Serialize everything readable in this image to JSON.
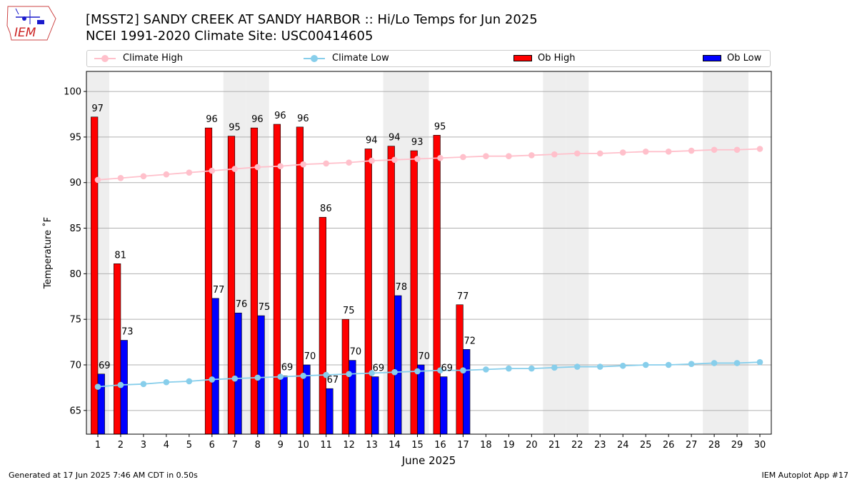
{
  "header": {
    "logo_text": "IEM",
    "title_line1": "[MSST2] SANDY CREEK  AT SANDY HARBOR :: Hi/Lo Temps for Jun 2025",
    "title_line2": "NCEI 1991-2020 Climate Site: USC00414605"
  },
  "legend": [
    {
      "label": "Climate High",
      "kind": "line",
      "color": "#ffc0cb"
    },
    {
      "label": "Climate Low",
      "kind": "line",
      "color": "#87ceeb"
    },
    {
      "label": "Ob High",
      "kind": "bar",
      "color": "#ff0000"
    },
    {
      "label": "Ob Low",
      "kind": "bar",
      "color": "#0000ff"
    }
  ],
  "footer": {
    "left": "Generated at 17 Jun 2025 7:46 AM CDT in 0.50s",
    "right": "IEM Autoplot App #17"
  },
  "chart_data": {
    "type": "bar",
    "xlabel": "June 2025",
    "ylabel": "Temperature ˚F",
    "x": [
      1,
      2,
      3,
      4,
      5,
      6,
      7,
      8,
      9,
      10,
      11,
      12,
      13,
      14,
      15,
      16,
      17,
      18,
      19,
      20,
      21,
      22,
      23,
      24,
      25,
      26,
      27,
      28,
      29,
      30
    ],
    "xlim": [
      0.5,
      30.5
    ],
    "ylim": [
      62.4,
      102.2
    ],
    "yticks": [
      65,
      70,
      75,
      80,
      85,
      90,
      95,
      100
    ],
    "grid": true,
    "legend_position": "top",
    "weekend_shaded_days": [
      1,
      7,
      8,
      14,
      15,
      21,
      22,
      28,
      29
    ],
    "series": [
      {
        "name": "Ob High",
        "kind": "bar",
        "color": "#ff0000",
        "values": [
          97.2,
          81.1,
          null,
          null,
          null,
          96.0,
          95.1,
          96.0,
          96.4,
          96.1,
          86.2,
          75.0,
          93.7,
          94.0,
          93.5,
          95.2,
          76.6,
          null,
          null,
          null,
          null,
          null,
          null,
          null,
          null,
          null,
          null,
          null,
          null,
          null
        ],
        "labels": [
          "97",
          "81",
          null,
          null,
          null,
          "96",
          "95",
          "96",
          "96",
          "96",
          "86",
          "75",
          "94",
          "94",
          "93",
          "95",
          "77",
          null,
          null,
          null,
          null,
          null,
          null,
          null,
          null,
          null,
          null,
          null,
          null,
          null
        ]
      },
      {
        "name": "Ob Low",
        "kind": "bar",
        "color": "#0000ff",
        "values": [
          69.0,
          72.7,
          null,
          null,
          null,
          77.3,
          75.7,
          75.4,
          68.8,
          70.0,
          67.4,
          70.5,
          68.7,
          77.6,
          70.0,
          68.7,
          71.7,
          null,
          null,
          null,
          null,
          null,
          null,
          null,
          null,
          null,
          null,
          null,
          null,
          null
        ],
        "labels": [
          "69",
          "73",
          null,
          null,
          null,
          "77",
          "76",
          "75",
          "69",
          "70",
          "67",
          "70",
          "69",
          "78",
          "70",
          "69",
          "72",
          null,
          null,
          null,
          null,
          null,
          null,
          null,
          null,
          null,
          null,
          null,
          null,
          null
        ]
      },
      {
        "name": "Climate High",
        "kind": "line",
        "color": "#ffc0cb",
        "values": [
          90.3,
          90.5,
          90.7,
          90.9,
          91.1,
          91.3,
          91.5,
          91.7,
          91.8,
          92.0,
          92.1,
          92.2,
          92.4,
          92.5,
          92.6,
          92.7,
          92.8,
          92.9,
          92.9,
          93.0,
          93.1,
          93.2,
          93.2,
          93.3,
          93.4,
          93.4,
          93.5,
          93.6,
          93.6,
          93.7
        ]
      },
      {
        "name": "Climate Low",
        "kind": "line",
        "color": "#87ceeb",
        "values": [
          67.6,
          67.8,
          67.9,
          68.1,
          68.2,
          68.4,
          68.5,
          68.6,
          68.7,
          68.8,
          68.9,
          69.0,
          69.1,
          69.2,
          69.3,
          69.4,
          69.4,
          69.5,
          69.6,
          69.6,
          69.7,
          69.8,
          69.8,
          69.9,
          70.0,
          70.0,
          70.1,
          70.2,
          70.2,
          70.3
        ]
      }
    ]
  }
}
